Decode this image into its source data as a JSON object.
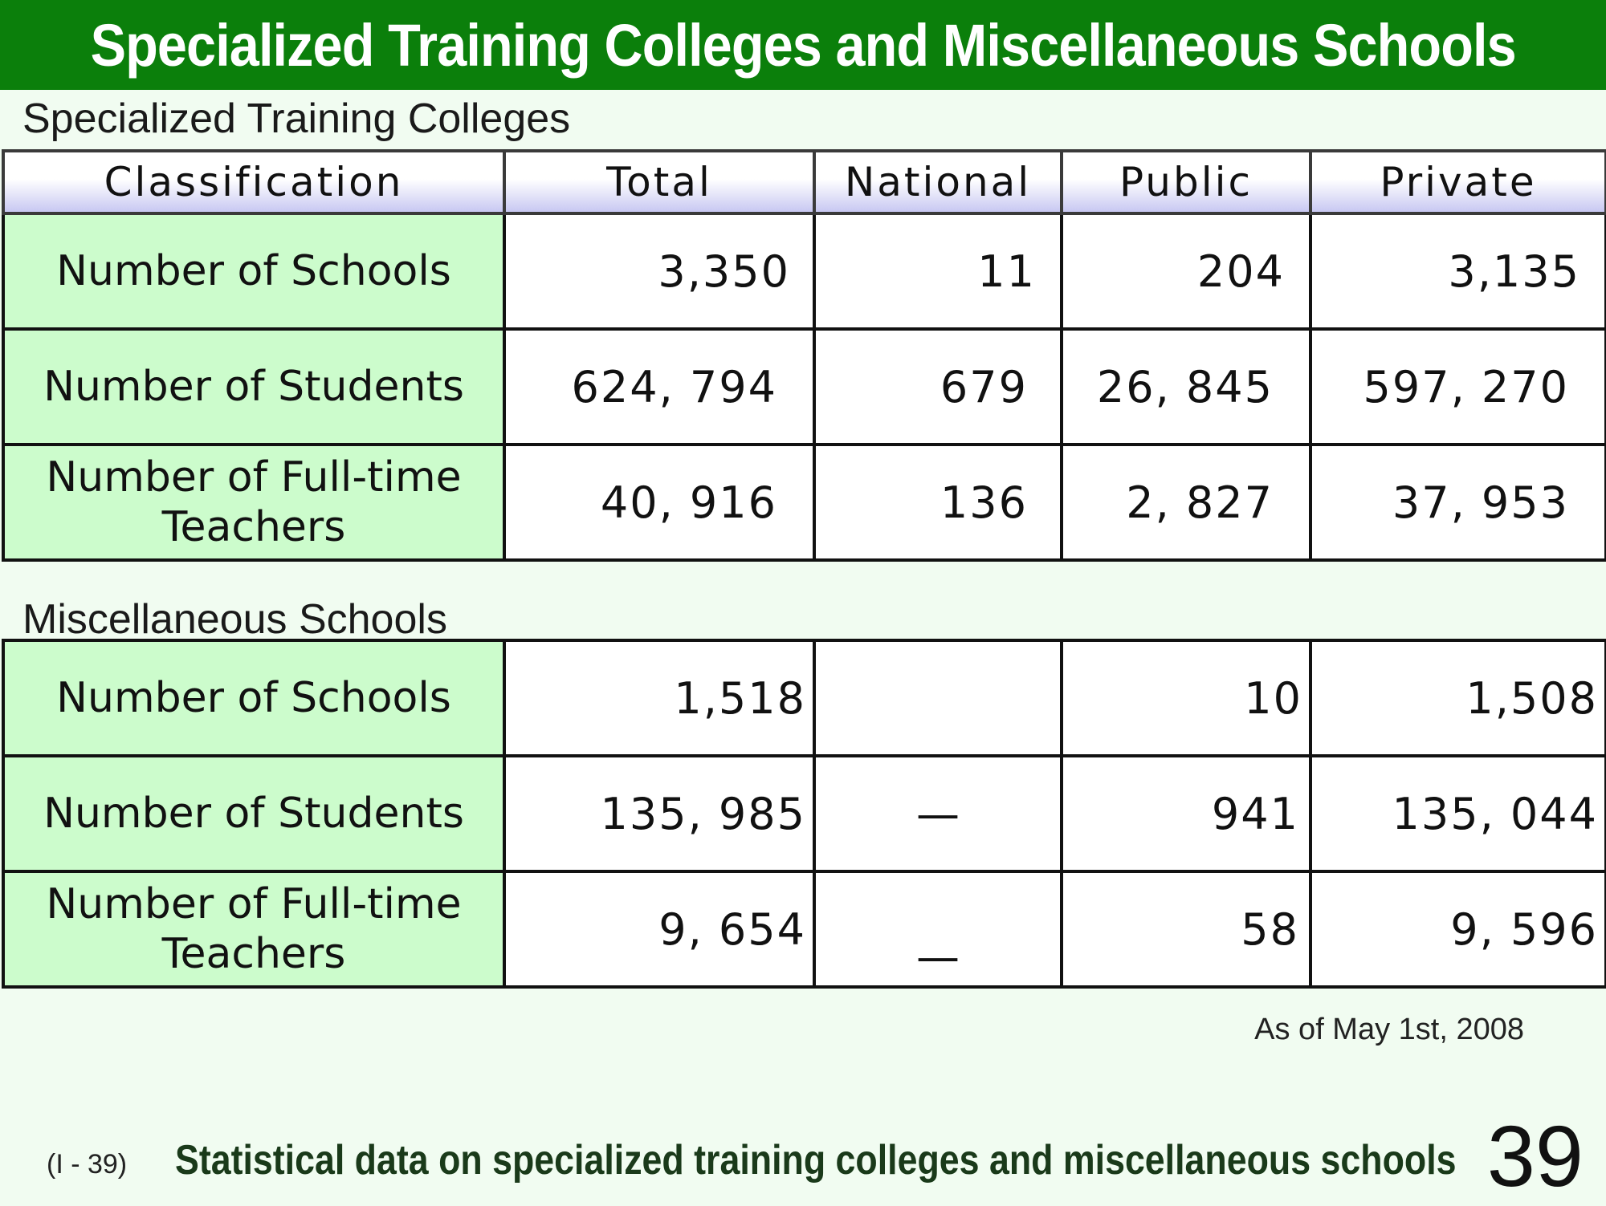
{
  "title": "Specialized Training Colleges and Miscellaneous Schools",
  "section1": {
    "label": "Specialized Training Colleges",
    "headers": [
      "Classification",
      "Total",
      "National",
      "Public",
      "Private"
    ],
    "rows": [
      {
        "label": "Number of Schools",
        "total": "3,350",
        "national": "11",
        "public": "204",
        "private": "3,135"
      },
      {
        "label": "Number of Students",
        "total": "624, 794",
        "national": "679",
        "public": "26, 845",
        "private": "597, 270"
      },
      {
        "label": "Number of Full-time Teachers",
        "total": "40, 916",
        "national": "136",
        "public": "2, 827",
        "private": "37, 953"
      }
    ]
  },
  "section2": {
    "label": "Miscellaneous Schools",
    "rows": [
      {
        "label": "Number of Schools",
        "total": "1,518",
        "national": "",
        "public": "10",
        "private": "1,508"
      },
      {
        "label": "Number of Students",
        "total": "135, 985",
        "national": "—",
        "public": "941",
        "private": "135, 044"
      },
      {
        "label": "Number of Full-time Teachers",
        "total": "9, 654",
        "national": "—",
        "public": "58",
        "private": "9, 596"
      }
    ]
  },
  "note": "As of May 1st, 2008",
  "footer": {
    "code": "(I - 39)",
    "caption": "Statistical data on specialized training colleges and miscellaneous schools",
    "page_number": "39"
  }
}
